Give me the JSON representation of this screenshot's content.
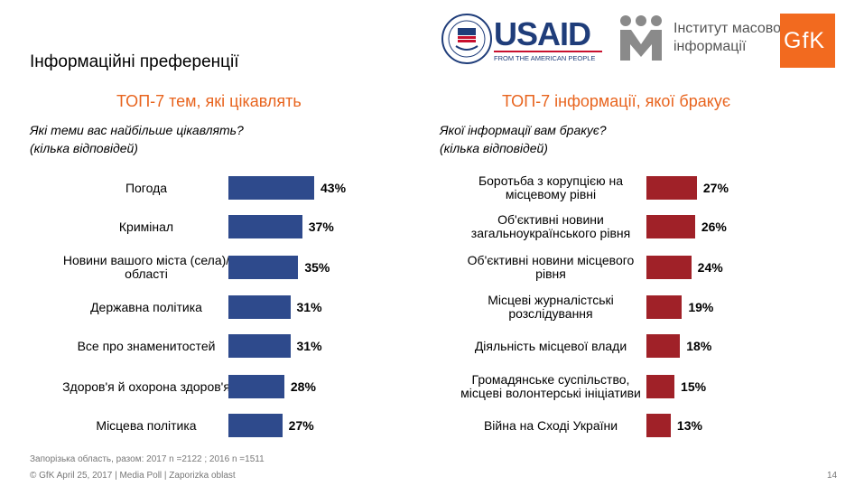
{
  "page": {
    "title": "Інформаційні преференції",
    "footnote": "Запорізька область, разом: 2017 n =2122 ; 2016 n =1511",
    "footer": "© GfK April 25, 2017 | Media Poll | Zaporizka oblast",
    "page_number": "14"
  },
  "logos": {
    "usaid_text": "USAID",
    "usaid_tagline": "FROM THE AMERICAN PEOPLE",
    "imi_line1": "Інститут масової",
    "imi_line2": "інформації",
    "gfk_text": "GfK"
  },
  "left": {
    "title": "ТОП-7 тем, які цікавлять",
    "question1": "Які теми вас найбільше цікавлять?",
    "question2": "(кілька відповідей)"
  },
  "right": {
    "title": "ТОП-7 інформації, якої бракує",
    "question1": "Якої інформації вам бракує?",
    "question2": "(кілька відповідей)"
  },
  "chart_data": [
    {
      "type": "bar",
      "orientation": "horizontal",
      "title": "ТОП-7 тем, які цікавлять",
      "color": "#2e4a8c",
      "categories": [
        "Погода",
        "Кримінал",
        "Новини вашого міста (села)/області",
        "Державна політика",
        "Все про знаменитостей",
        "Здоров'я й охорона здоров'я",
        "Місцева політика"
      ],
      "values": [
        43,
        37,
        35,
        31,
        31,
        28,
        27
      ],
      "labels": [
        "43%",
        "37%",
        "35%",
        "31%",
        "31%",
        "28%",
        "27%"
      ]
    },
    {
      "type": "bar",
      "orientation": "horizontal",
      "title": "ТОП-7 інформації, якої бракує",
      "color": "#a02128",
      "categories": [
        "Боротьба з корупцією на місцевому рівні",
        "Об'єктивні новини загальноукраїнського рівня",
        "Об'єктивні новини місцевого рівня",
        "Місцеві журналістські розслідування",
        "Діяльність місцевої влади",
        "Громадянське суспільство, місцеві волонтерські ініціативи",
        "Війна на Сході України"
      ],
      "values": [
        27,
        26,
        24,
        19,
        18,
        15,
        13
      ],
      "labels": [
        "27%",
        "26%",
        "24%",
        "19%",
        "18%",
        "15%",
        "13%"
      ]
    }
  ]
}
